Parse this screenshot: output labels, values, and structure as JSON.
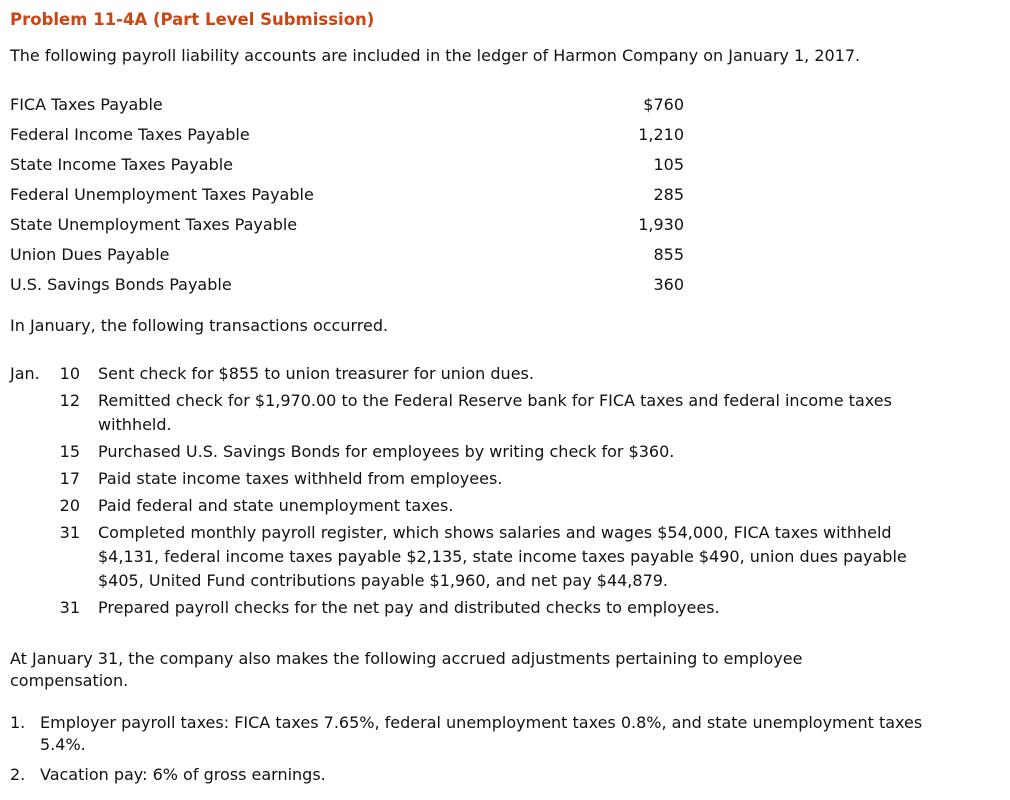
{
  "page": {
    "title": "Problem 11-4A (Part Level Submission)",
    "title_color": "#cc4512",
    "intro": "The following payroll liability accounts are included in the ledger of Harmon Company on January 1, 2017.",
    "accounts": [
      {
        "name": "FICA Taxes Payable",
        "amount": "$760"
      },
      {
        "name": "Federal Income Taxes Payable",
        "amount": "1,210"
      },
      {
        "name": "State Income Taxes Payable",
        "amount": "105"
      },
      {
        "name": "Federal Unemployment Taxes Payable",
        "amount": "285"
      },
      {
        "name": "State Unemployment Taxes Payable",
        "amount": "1,930"
      },
      {
        "name": "Union Dues Payable",
        "amount": "855"
      },
      {
        "name": "U.S. Savings Bonds Payable",
        "amount": "360"
      }
    ],
    "transactions_intro": "In January, the following transactions occurred.",
    "transactions_month": "Jan.",
    "transactions": [
      {
        "day": "10",
        "text": "Sent check for $855 to union treasurer for union dues."
      },
      {
        "day": "12",
        "text": "Remitted check for $1,970.00 to the Federal Reserve bank for FICA taxes and federal income taxes withheld."
      },
      {
        "day": "15",
        "text": "Purchased U.S. Savings Bonds for employees by writing check for $360."
      },
      {
        "day": "17",
        "text": "Paid state income taxes withheld from employees."
      },
      {
        "day": "20",
        "text": "Paid federal and state unemployment taxes."
      },
      {
        "day": "31",
        "text": "Completed monthly payroll register, which shows salaries and wages $54,000, FICA taxes withheld $4,131, federal income taxes payable $2,135, state income taxes payable $490, union dues payable $405, United Fund contributions payable $1,960, and net pay $44,879."
      },
      {
        "day": "31",
        "text": "Prepared payroll checks for the net pay and distributed checks to employees."
      }
    ],
    "accruals_intro": "At January 31, the company also makes the following accrued adjustments pertaining to employee compensation.",
    "adjustments": [
      {
        "num": "1.",
        "text": "Employer payroll taxes: FICA taxes 7.65%, federal unemployment taxes 0.8%, and state unemployment taxes 5.4%."
      },
      {
        "num": "2.",
        "text": "Vacation pay: 6% of gross earnings."
      }
    ]
  }
}
